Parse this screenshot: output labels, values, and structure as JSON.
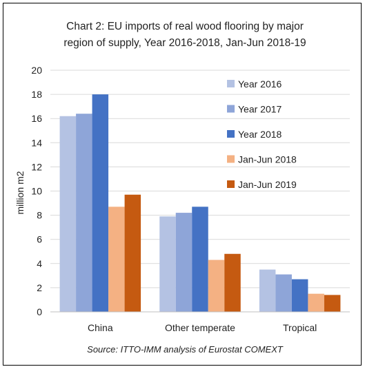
{
  "chart_data": {
    "type": "bar",
    "title_lines": [
      "Chart 2: EU imports of real wood flooring by major",
      "region of supply, Year 2016-2018, Jan-Jun 2018-19"
    ],
    "ylabel": "million m2",
    "xlabel": "",
    "ylim": [
      0,
      20
    ],
    "yticks": [
      0,
      2,
      4,
      6,
      8,
      10,
      12,
      14,
      16,
      18,
      20
    ],
    "ytick_labels": [
      "0",
      "2",
      "4",
      "6",
      "8",
      "10",
      "12",
      "14",
      "16",
      "18",
      "20"
    ],
    "grid": true,
    "legend_position": "top-right",
    "categories": [
      "China",
      "Other temperate",
      "Tropical"
    ],
    "series": [
      {
        "name": "Year 2016",
        "color": "#b4c2e3",
        "values": [
          16.2,
          7.9,
          3.5
        ]
      },
      {
        "name": "Year 2017",
        "color": "#8ea5d8",
        "values": [
          16.4,
          8.2,
          3.1
        ]
      },
      {
        "name": "Year 2018",
        "color": "#4472c4",
        "values": [
          18.0,
          8.7,
          2.7
        ]
      },
      {
        "name": "Jan-Jun 2018",
        "color": "#f4b183",
        "values": [
          8.7,
          4.3,
          1.5
        ]
      },
      {
        "name": "Jan-Jun 2019",
        "color": "#c55a11",
        "values": [
          9.7,
          4.8,
          1.4
        ]
      }
    ],
    "source": "Source: ITTO-IMM analysis of Eurostat COMEXT"
  }
}
